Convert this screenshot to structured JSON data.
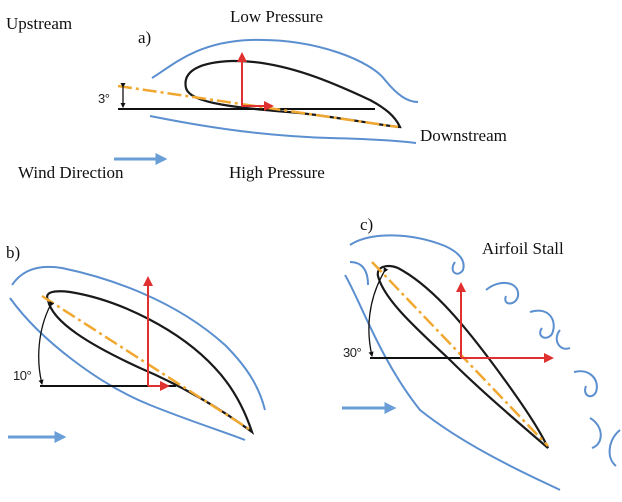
{
  "labels": {
    "upstream": "Upstream",
    "panel_a": "a)",
    "low_pressure": "Low Pressure",
    "downstream": "Downstream",
    "wind_direction": "Wind Direction",
    "high_pressure": "High Pressure",
    "panel_b": "b)",
    "panel_c": "c)",
    "airfoil_stall": "Airfoil Stall"
  },
  "angles": {
    "a": "3°",
    "b": "10°",
    "c": "30°"
  },
  "colors": {
    "airfoil": "#1a1a1a",
    "streamline": "#5b8fcf",
    "chord": "#f0a830",
    "force": "#e03030",
    "wind_arrow": "#6a9ed6",
    "reference": "#111111"
  }
}
